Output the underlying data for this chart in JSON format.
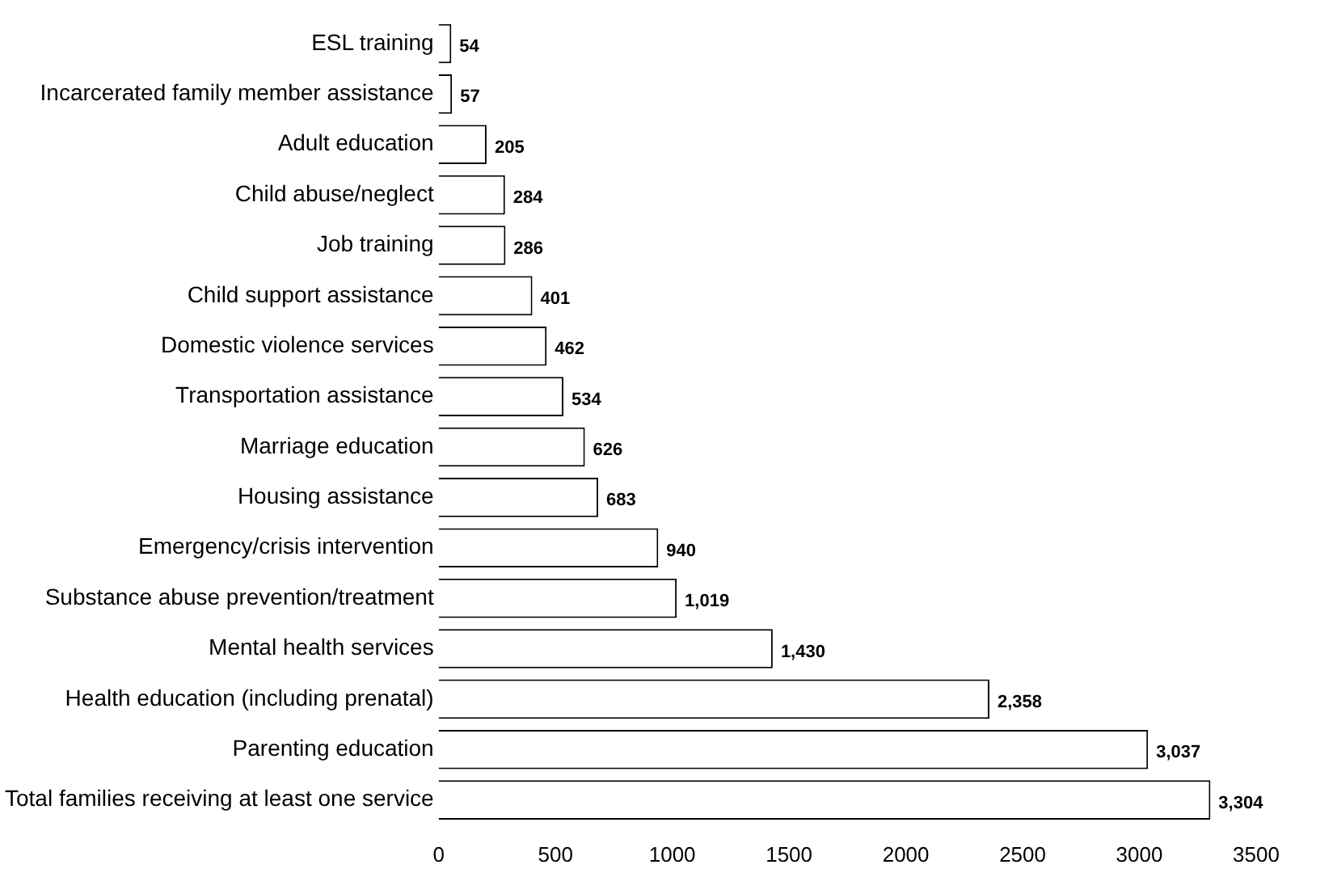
{
  "chart_data": {
    "type": "bar",
    "orientation": "horizontal",
    "categories": [
      "ESL training",
      "Incarcerated family member assistance",
      "Adult education",
      "Child abuse/neglect",
      "Job training",
      "Child support assistance",
      "Domestic violence services",
      "Transportation assistance",
      "Marriage education",
      "Housing assistance",
      "Emergency/crisis intervention",
      "Substance abuse prevention/treatment",
      "Mental health services",
      "Health education (including prenatal)",
      "Parenting education",
      "Total families receiving at least one service"
    ],
    "values": [
      54,
      57,
      205,
      284,
      286,
      401,
      462,
      534,
      626,
      683,
      940,
      1019,
      1430,
      2358,
      3037,
      3304
    ],
    "value_labels": [
      "54",
      "57",
      "205",
      "284",
      "286",
      "401",
      "462",
      "534",
      "626",
      "683",
      "940",
      "1,019",
      "1,430",
      "2,358",
      "3,037",
      "3,304"
    ],
    "color": "#ffffff",
    "xlim": [
      0,
      3500
    ],
    "xticks": [
      0,
      500,
      1000,
      1500,
      2000,
      2500,
      3000,
      3500
    ],
    "grid": false,
    "legend": false
  }
}
